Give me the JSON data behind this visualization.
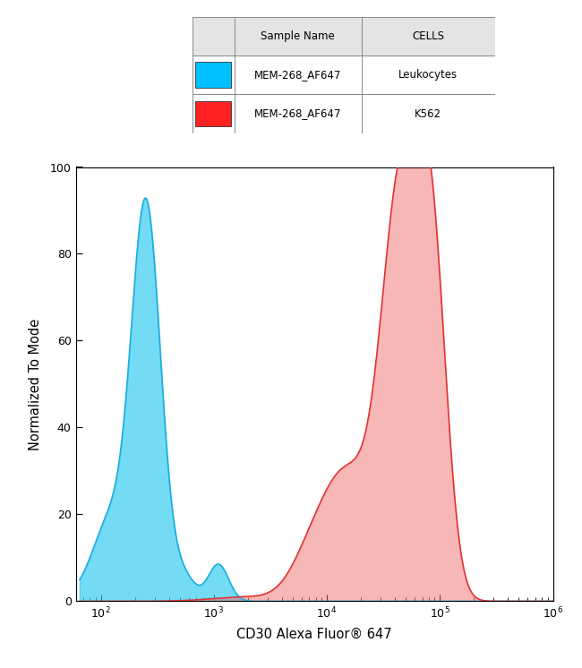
{
  "xlabel": "CD30 Alexa Fluor® 647",
  "ylabel": "Normalized To Mode",
  "xlim_log": [
    60,
    1000000
  ],
  "ylim": [
    0,
    100
  ],
  "yticks": [
    0,
    20,
    40,
    60,
    80,
    100
  ],
  "blue_color": "#29C8F0",
  "blue_edge": "#1AACDC",
  "blue_fill_alpha": 0.65,
  "red_color": "#F07070",
  "red_edge": "#E03030",
  "red_fill_alpha": 0.5,
  "legend_header": [
    "Sample Name",
    "CELLS"
  ],
  "legend_rows": [
    [
      "MEM-268_AF647",
      "Leukocytes"
    ],
    [
      "MEM-268_AF647",
      "K562"
    ]
  ],
  "legend_blue": "#00BFFF",
  "legend_red": "#FF2222",
  "background_color": "#ffffff"
}
